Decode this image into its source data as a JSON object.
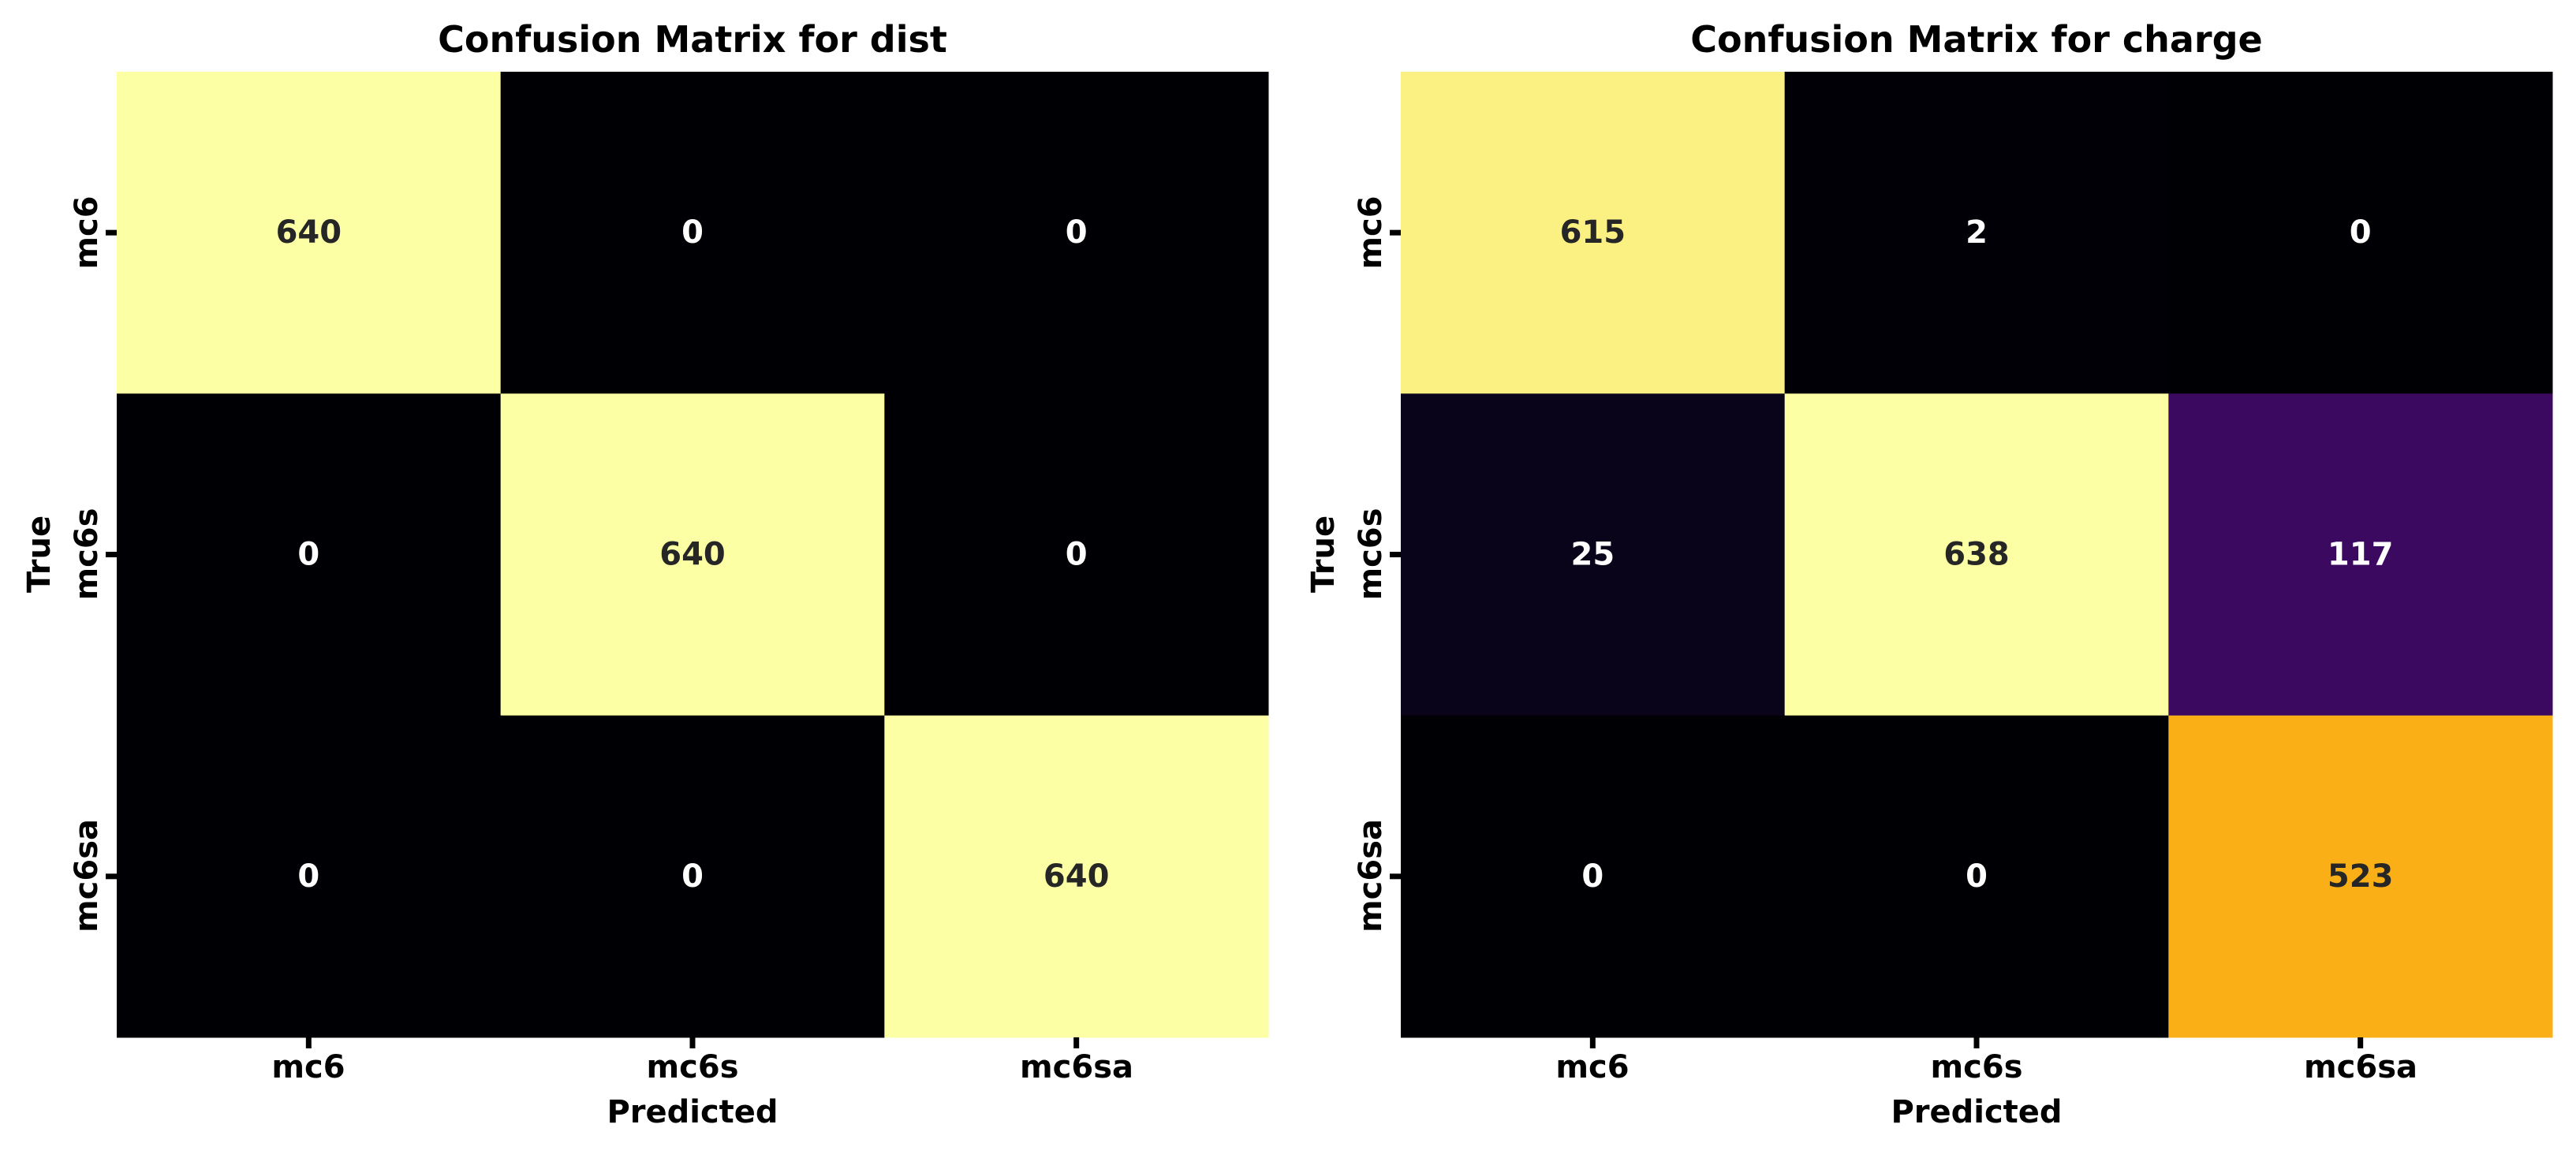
{
  "chart_data": [
    {
      "type": "heatmap",
      "title": "Confusion Matrix for dist",
      "xlabel": "Predicted",
      "ylabel": "True",
      "x_categories": [
        "mc6",
        "mc6s",
        "mc6sa"
      ],
      "y_categories": [
        "mc6",
        "mc6s",
        "mc6sa"
      ],
      "values": [
        [
          640,
          0,
          0
        ],
        [
          0,
          640,
          0
        ],
        [
          0,
          0,
          640
        ]
      ],
      "vmin": 0,
      "vmax": 640,
      "colormap": "inferno",
      "colorbar": false,
      "grid": false
    },
    {
      "type": "heatmap",
      "title": "Confusion Matrix for charge",
      "xlabel": "Predicted",
      "ylabel": "True",
      "x_categories": [
        "mc6",
        "mc6s",
        "mc6sa"
      ],
      "y_categories": [
        "mc6",
        "mc6s",
        "mc6sa"
      ],
      "values": [
        [
          615,
          2,
          0
        ],
        [
          25,
          638,
          117
        ],
        [
          0,
          0,
          523
        ]
      ],
      "vmin": 0,
      "vmax": 638,
      "colormap": "inferno",
      "colorbar": false,
      "grid": false
    }
  ]
}
